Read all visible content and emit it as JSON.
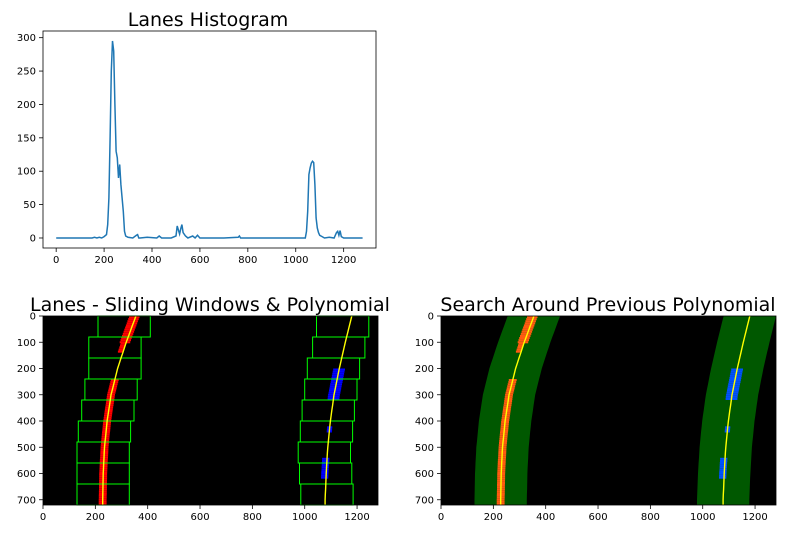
{
  "chart_data": [
    {
      "type": "line",
      "title": "Lanes Histogram",
      "xlabel": "",
      "ylabel": "",
      "xlim": [
        -55,
        1335
      ],
      "ylim": [
        -15,
        310
      ],
      "xticks": [
        0,
        200,
        400,
        600,
        800,
        1000,
        1200
      ],
      "yticks": [
        0,
        50,
        100,
        150,
        200,
        250,
        300
      ],
      "grid": false,
      "color": "#1f77b4",
      "series": [
        {
          "x": [
            0,
            150,
            160,
            170,
            180,
            190,
            200,
            210,
            215,
            220,
            225,
            230,
            235,
            240,
            245,
            250,
            255,
            260,
            265,
            270,
            275,
            280,
            285,
            290,
            300,
            320,
            335,
            340,
            345,
            350,
            380,
            420,
            430,
            440,
            450,
            480,
            500,
            505,
            510,
            515,
            520,
            525,
            530,
            540,
            550,
            570,
            580,
            590,
            600,
            620,
            700,
            760,
            765,
            770,
            800,
            1040,
            1045,
            1050,
            1055,
            1060,
            1065,
            1070,
            1075,
            1080,
            1085,
            1090,
            1095,
            1100,
            1110,
            1120,
            1140,
            1160,
            1170,
            1175,
            1180,
            1185,
            1190,
            1200,
            1279
          ],
          "y": [
            0,
            0,
            1,
            0,
            1,
            0,
            2,
            5,
            20,
            60,
            150,
            250,
            295,
            280,
            200,
            130,
            120,
            90,
            110,
            80,
            60,
            40,
            10,
            3,
            1,
            0,
            4,
            5,
            0,
            0,
            1,
            0,
            3,
            0,
            0,
            0,
            3,
            18,
            12,
            6,
            14,
            20,
            8,
            3,
            0,
            3,
            0,
            4,
            0,
            0,
            0,
            1,
            3,
            0,
            0,
            0,
            10,
            40,
            95,
            105,
            112,
            115,
            113,
            80,
            30,
            15,
            8,
            4,
            2,
            0,
            1,
            0,
            8,
            10,
            4,
            11,
            2,
            0,
            0
          ]
        }
      ]
    },
    {
      "type": "image",
      "title": "Lanes - Sliding Windows & Polynomial",
      "xlim": [
        0,
        1280
      ],
      "ylim": [
        720,
        0
      ],
      "xticks": [
        0,
        200,
        400,
        600,
        800,
        1000,
        1200
      ],
      "yticks": [
        0,
        100,
        200,
        300,
        400,
        500,
        600,
        700
      ],
      "background": "#000000",
      "colors": {
        "left_pixels": "#ff0000",
        "right_pixels": "#0000ff",
        "windows": "#00ff00",
        "fit": "#ffff00"
      },
      "windows_left": [
        {
          "x": [
            210,
            410
          ],
          "y": [
            0,
            80
          ]
        },
        {
          "x": [
            175,
            375
          ],
          "y": [
            80,
            160
          ]
        },
        {
          "x": [
            175,
            375
          ],
          "y": [
            160,
            240
          ]
        },
        {
          "x": [
            160,
            360
          ],
          "y": [
            240,
            320
          ]
        },
        {
          "x": [
            148,
            348
          ],
          "y": [
            320,
            400
          ]
        },
        {
          "x": [
            135,
            335
          ],
          "y": [
            400,
            480
          ]
        },
        {
          "x": [
            130,
            330
          ],
          "y": [
            480,
            560
          ]
        },
        {
          "x": [
            130,
            330
          ],
          "y": [
            560,
            640
          ]
        },
        {
          "x": [
            130,
            330
          ],
          "y": [
            640,
            720
          ]
        }
      ],
      "windows_right": [
        {
          "x": [
            1045,
            1245
          ],
          "y": [
            0,
            80
          ]
        },
        {
          "x": [
            1030,
            1230
          ],
          "y": [
            80,
            160
          ]
        },
        {
          "x": [
            1010,
            1210
          ],
          "y": [
            160,
            240
          ]
        },
        {
          "x": [
            1000,
            1200
          ],
          "y": [
            240,
            320
          ]
        },
        {
          "x": [
            990,
            1190
          ],
          "y": [
            320,
            400
          ]
        },
        {
          "x": [
            983,
            1183
          ],
          "y": [
            400,
            480
          ]
        },
        {
          "x": [
            975,
            1175
          ],
          "y": [
            480,
            560
          ]
        },
        {
          "x": [
            980,
            1180
          ],
          "y": [
            560,
            640
          ]
        },
        {
          "x": [
            985,
            1185
          ],
          "y": [
            640,
            720
          ]
        }
      ],
      "fit_left": {
        "y": [
          0,
          100,
          200,
          300,
          400,
          500,
          600,
          700,
          720
        ],
        "x": [
          355,
          318,
          285,
          260,
          245,
          235,
          230,
          228,
          228
        ]
      },
      "fit_right": {
        "y": [
          0,
          100,
          200,
          300,
          400,
          500,
          600,
          700,
          720
        ],
        "x": [
          1180,
          1155,
          1132,
          1112,
          1098,
          1088,
          1082,
          1078,
          1078
        ]
      }
    },
    {
      "type": "image",
      "title": "Search Around Previous Polynomial",
      "xlim": [
        0,
        1280
      ],
      "ylim": [
        720,
        0
      ],
      "xticks": [
        0,
        200,
        400,
        600,
        800,
        1000,
        1200
      ],
      "yticks": [
        0,
        100,
        200,
        300,
        400,
        500,
        600,
        700
      ],
      "background": "#000000",
      "colors": {
        "search_band": "#005800",
        "left_pixels": "#ff5a10",
        "right_pixels": "#0050ff",
        "fit": "#ffff00"
      },
      "search_margin": 100,
      "fit_left": {
        "y": [
          0,
          100,
          200,
          300,
          400,
          500,
          600,
          700,
          720
        ],
        "x": [
          355,
          318,
          285,
          260,
          245,
          235,
          230,
          228,
          228
        ]
      },
      "fit_right": {
        "y": [
          0,
          100,
          200,
          300,
          400,
          500,
          600,
          700,
          720
        ],
        "x": [
          1180,
          1155,
          1132,
          1112,
          1098,
          1088,
          1082,
          1078,
          1078
        ]
      }
    }
  ]
}
